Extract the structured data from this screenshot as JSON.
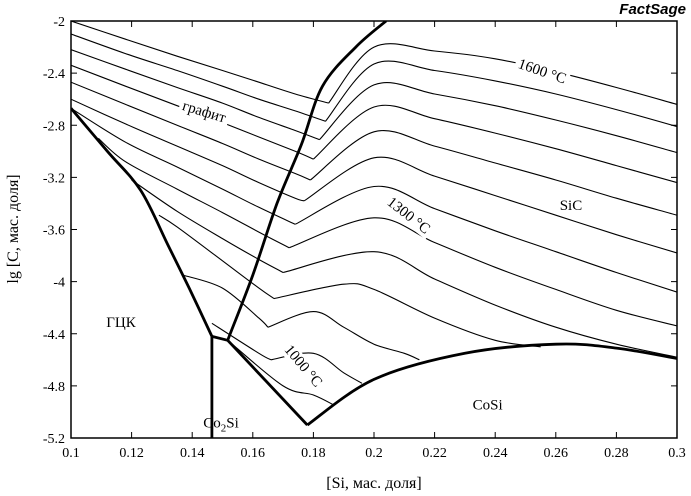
{
  "chart_data": {
    "type": "line",
    "brand": "FactSage",
    "xlabel": "[Si, мас. доля]",
    "ylabel": "lg [C, мас. доля]",
    "xlim": [
      0.1,
      0.3
    ],
    "ylim": [
      -5.2,
      -2.0
    ],
    "x_ticks": [
      "0.1",
      "0.12",
      "0.14",
      "0.16",
      "0.18",
      "0.2",
      "0.22",
      "0.24",
      "0.26",
      "0.28",
      "0.3"
    ],
    "y_ticks": [
      "-2",
      "-2.4",
      "-2.8",
      "-3.2",
      "-3.6",
      "-4",
      "-4.4",
      "-4.8",
      "-5.2"
    ],
    "grid": false,
    "annotations": [
      {
        "text": "1600 °C",
        "x": 0.255,
        "y": -2.42,
        "angle": 19
      },
      {
        "text": "графит",
        "x": 0.1435,
        "y": -2.73,
        "angle": 17
      },
      {
        "text": "SiC",
        "x": 0.265,
        "y": -3.45,
        "angle": 0
      },
      {
        "text": "1300 °C",
        "x": 0.2105,
        "y": -3.52,
        "angle": 38
      },
      {
        "text": "ГЦК",
        "x": 0.1165,
        "y": -4.35,
        "angle": 0
      },
      {
        "text": "1000 °C",
        "x": 0.1755,
        "y": -4.67,
        "angle": 50
      },
      {
        "text": "CoSi",
        "x": 0.2375,
        "y": -4.98,
        "angle": 0
      }
    ],
    "co2si_label": {
      "main": "Co",
      "sub": "2",
      "rest": "Si",
      "x": 0.1495,
      "y": -5.12
    },
    "phase_boundaries": [
      {
        "name": "graphite–FCC",
        "x": [
          0.1,
          0.112,
          0.123,
          0.132,
          0.139,
          0.1465
        ],
        "y": [
          -2.67,
          -3.0,
          -3.3,
          -3.72,
          -4.05,
          -4.42
        ]
      },
      {
        "name": "SiC–FCC",
        "x": [
          0.1465,
          0.1517
        ],
        "y": [
          -4.42,
          -4.45
        ]
      },
      {
        "name": "graphite–SiC",
        "x": [
          0.1517,
          0.16,
          0.168,
          0.176,
          0.183,
          0.194,
          0.204
        ],
        "y": [
          -4.45,
          -3.95,
          -3.4,
          -2.95,
          -2.5,
          -2.2,
          -2.0
        ]
      },
      {
        "name": "FCC–Co2Si",
        "x": [
          0.1465,
          0.1465,
          0.1465
        ],
        "y": [
          -4.42,
          -4.8,
          -5.2
        ]
      },
      {
        "name": "SiC–Co2Si",
        "x": [
          0.1517,
          0.178
        ],
        "y": [
          -4.45,
          -5.1
        ]
      },
      {
        "name": "SiC–CoSi",
        "x": [
          0.178,
          0.2,
          0.23,
          0.26,
          0.28,
          0.3
        ],
        "y": [
          -5.1,
          -4.75,
          -4.55,
          -4.48,
          -4.51,
          -4.59
        ]
      }
    ],
    "isotherm_labels": [
      "1600 °C",
      "1300 °C",
      "1000 °C"
    ],
    "isotherms": [
      {
        "x": [
          0.1,
          0.118,
          0.135,
          0.15,
          0.162,
          0.174,
          0.185
        ],
        "y": [
          -2.0,
          -2.14,
          -2.27,
          -2.38,
          -2.47,
          -2.56,
          -2.63
        ]
      },
      {
        "x": [
          0.185,
          0.2,
          0.22,
          0.24,
          0.26,
          0.28,
          0.3
        ],
        "y": [
          -2.63,
          -2.2,
          -2.23,
          -2.29,
          -2.39,
          -2.51,
          -2.64
        ]
      },
      {
        "x": [
          0.1,
          0.118,
          0.135,
          0.15,
          0.162,
          0.174,
          0.184
        ],
        "y": [
          -2.1,
          -2.25,
          -2.38,
          -2.5,
          -2.6,
          -2.69,
          -2.77
        ]
      },
      {
        "x": [
          0.184,
          0.2,
          0.22,
          0.24,
          0.26,
          0.28,
          0.3
        ],
        "y": [
          -2.77,
          -2.33,
          -2.38,
          -2.46,
          -2.56,
          -2.68,
          -2.81
        ]
      },
      {
        "x": [
          0.1,
          0.118,
          0.135,
          0.15,
          0.162,
          0.174,
          0.182
        ],
        "y": [
          -2.22,
          -2.37,
          -2.51,
          -2.63,
          -2.74,
          -2.84,
          -2.91
        ]
      },
      {
        "x": [
          0.182,
          0.2,
          0.22,
          0.24,
          0.26,
          0.28,
          0.3
        ],
        "y": [
          -2.91,
          -2.49,
          -2.56,
          -2.65,
          -2.76,
          -2.88,
          -3.01
        ]
      },
      {
        "x": [
          0.1,
          0.118,
          0.135,
          0.15,
          0.162,
          0.174,
          0.18
        ],
        "y": [
          -2.34,
          -2.5,
          -2.65,
          -2.78,
          -2.89,
          -3.0,
          -3.06
        ]
      },
      {
        "x": [
          0.18,
          0.2,
          0.22,
          0.24,
          0.26,
          0.28,
          0.3
        ],
        "y": [
          -3.06,
          -2.66,
          -2.75,
          -2.86,
          -2.98,
          -3.11,
          -3.24
        ]
      },
      {
        "x": [
          0.1,
          0.118,
          0.135,
          0.15,
          0.162,
          0.174,
          0.179
        ],
        "y": [
          -2.47,
          -2.64,
          -2.8,
          -2.94,
          -3.06,
          -3.17,
          -3.22
        ]
      },
      {
        "x": [
          0.179,
          0.2,
          0.22,
          0.24,
          0.26,
          0.28,
          0.3
        ],
        "y": [
          -3.22,
          -2.85,
          -2.96,
          -3.09,
          -3.22,
          -3.36,
          -3.49
        ]
      },
      {
        "x": [
          0.1,
          0.118,
          0.135,
          0.15,
          0.162,
          0.174,
          0.177
        ],
        "y": [
          -2.6,
          -2.79,
          -2.96,
          -3.11,
          -3.24,
          -3.36,
          -3.38
        ]
      },
      {
        "x": [
          0.177,
          0.2,
          0.22,
          0.24,
          0.26,
          0.28,
          0.3
        ],
        "y": [
          -3.38,
          -3.05,
          -3.19,
          -3.34,
          -3.49,
          -3.64,
          -3.78
        ]
      },
      {
        "x": [
          0.1,
          0.118,
          0.135,
          0.15,
          0.162,
          0.174
        ],
        "y": [
          -2.67,
          -2.93,
          -3.12,
          -3.29,
          -3.43,
          -3.56
        ]
      },
      {
        "x": [
          0.174,
          0.2,
          0.22,
          0.24,
          0.26,
          0.28,
          0.3
        ],
        "y": [
          -3.56,
          -3.27,
          -3.44,
          -3.61,
          -3.77,
          -3.93,
          -4.08
        ]
      },
      {
        "x": [
          0.109,
          0.118,
          0.135,
          0.15,
          0.162,
          0.172
        ],
        "y": [
          -2.9,
          -3.08,
          -3.29,
          -3.47,
          -3.62,
          -3.74
        ]
      },
      {
        "x": [
          0.172,
          0.2,
          0.22,
          0.24,
          0.26,
          0.28,
          0.3
        ],
        "y": [
          -3.74,
          -3.51,
          -3.7,
          -3.89,
          -4.06,
          -4.22,
          -4.34
        ]
      },
      {
        "x": [
          0.12,
          0.135,
          0.15,
          0.162,
          0.17
        ],
        "y": [
          -3.22,
          -3.46,
          -3.67,
          -3.83,
          -3.93
        ]
      },
      {
        "x": [
          0.17,
          0.2,
          0.22,
          0.24,
          0.26,
          0.28,
          0.3
        ],
        "y": [
          -3.93,
          -3.77,
          -3.98,
          -4.18,
          -4.35,
          -4.48,
          -4.58
        ]
      },
      {
        "x": [
          0.129,
          0.135,
          0.15,
          0.162,
          0.167
        ],
        "y": [
          -3.49,
          -3.58,
          -3.84,
          -4.05,
          -4.13
        ]
      },
      {
        "x": [
          0.167,
          0.19,
          0.2,
          0.22,
          0.24,
          0.255
        ],
        "y": [
          -4.13,
          -4.02,
          -4.06,
          -4.28,
          -4.45,
          -4.5
        ]
      },
      {
        "x": [
          0.137,
          0.15,
          0.162,
          0.165
        ],
        "y": [
          -3.95,
          -4.05,
          -4.28,
          -4.35
        ]
      },
      {
        "x": [
          0.165,
          0.18,
          0.19,
          0.2,
          0.21,
          0.215
        ],
        "y": [
          -4.35,
          -4.23,
          -4.35,
          -4.48,
          -4.55,
          -4.6
        ]
      },
      {
        "x": [
          0.1465,
          0.162,
          0.166
        ],
        "y": [
          -4.32,
          -4.55,
          -4.6
        ]
      },
      {
        "x": [
          0.166,
          0.18,
          0.19,
          0.196
        ],
        "y": [
          -4.6,
          -4.55,
          -4.7,
          -4.78
        ]
      },
      {
        "x": [
          0.1517,
          0.17,
          0.18,
          0.187
        ],
        "y": [
          -4.45,
          -4.8,
          -4.87,
          -4.95
        ]
      }
    ]
  }
}
